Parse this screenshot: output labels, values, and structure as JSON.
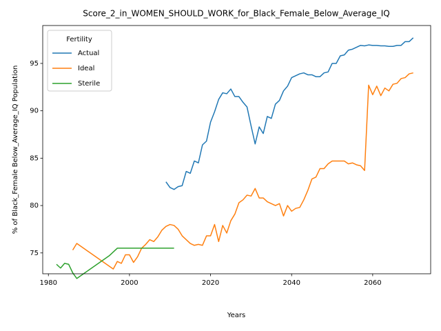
{
  "chart_data": {
    "type": "line",
    "title": "Score_2_in_WOMEN_SHOULD_WORK_for_Black_Female_Below_Average_IQ",
    "x_label": "Years",
    "y_label": "% of Black_Female Below_Average_IQ Population",
    "legend_title": "Fertility",
    "legend_loc": "upper left",
    "grid": false,
    "xlim": [
      1978.6,
      2074.3
    ],
    "ylim": [
      72.8,
      99.0
    ],
    "xticks": [
      1980,
      2000,
      2020,
      2040,
      2060
    ],
    "yticks": [
      75,
      80,
      85,
      90,
      95
    ],
    "x": [
      1982,
      1983,
      1984,
      1985,
      1986,
      1987,
      1988,
      1989,
      1990,
      1991,
      1992,
      1993,
      1994,
      1995,
      1996,
      1997,
      1998,
      1999,
      2000,
      2001,
      2002,
      2003,
      2004,
      2005,
      2006,
      2007,
      2008,
      2009,
      2010,
      2011,
      2012,
      2013,
      2014,
      2015,
      2016,
      2017,
      2018,
      2019,
      2020,
      2021,
      2022,
      2023,
      2024,
      2025,
      2026,
      2027,
      2028,
      2029,
      2030,
      2031,
      2032,
      2033,
      2034,
      2035,
      2036,
      2037,
      2038,
      2039,
      2040,
      2041,
      2042,
      2043,
      2044,
      2045,
      2046,
      2047,
      2048,
      2049,
      2050,
      2051,
      2052,
      2053,
      2054,
      2055,
      2056,
      2057,
      2058,
      2059,
      2060,
      2061,
      2062,
      2063,
      2064,
      2065,
      2066,
      2067,
      2068,
      2069,
      2070
    ],
    "series": [
      {
        "name": "Actual",
        "color": "#1f77b4",
        "values": [
          null,
          null,
          null,
          null,
          null,
          null,
          null,
          null,
          null,
          null,
          null,
          null,
          null,
          null,
          null,
          null,
          null,
          null,
          null,
          null,
          null,
          null,
          null,
          null,
          null,
          null,
          null,
          82.5,
          81.9,
          81.7,
          82.0,
          82.1,
          83.6,
          83.4,
          84.7,
          84.5,
          86.4,
          86.8,
          88.8,
          89.9,
          91.2,
          91.9,
          91.8,
          92.3,
          91.5,
          91.5,
          90.9,
          90.4,
          88.4,
          86.5,
          88.3,
          87.6,
          89.4,
          89.2,
          90.7,
          91.1,
          92.1,
          92.6,
          93.5,
          93.7,
          93.9,
          94.0,
          93.8,
          93.8,
          93.6,
          93.6,
          94.0,
          94.1,
          95.0,
          95.0,
          95.8,
          95.9,
          96.4,
          96.5,
          96.7,
          96.9,
          96.85,
          96.95,
          96.9,
          96.9,
          96.85,
          96.85,
          96.8,
          96.8,
          96.9,
          96.9,
          97.3,
          97.3,
          97.7
        ]
      },
      {
        "name": "Ideal",
        "color": "#ff7f0e",
        "values": [
          null,
          null,
          null,
          null,
          75.3,
          76.0,
          75.7,
          75.4,
          75.1,
          74.8,
          74.5,
          74.2,
          73.9,
          73.6,
          73.3,
          74.1,
          73.9,
          74.8,
          74.8,
          74.0,
          74.6,
          75.5,
          75.9,
          76.4,
          76.2,
          76.7,
          77.4,
          77.8,
          78.0,
          77.9,
          77.5,
          76.8,
          76.4,
          76.0,
          75.8,
          75.9,
          75.8,
          76.8,
          76.8,
          78.0,
          76.2,
          77.9,
          77.1,
          78.4,
          79.1,
          80.3,
          80.6,
          81.1,
          81.0,
          81.8,
          80.8,
          80.8,
          80.4,
          80.2,
          80.0,
          80.2,
          78.9,
          80.0,
          79.4,
          79.7,
          79.8,
          80.6,
          81.6,
          82.8,
          83.0,
          83.9,
          83.9,
          84.4,
          84.7,
          84.7,
          84.7,
          84.7,
          84.4,
          84.5,
          84.3,
          84.2,
          83.7,
          92.7,
          91.7,
          92.6,
          91.6,
          92.4,
          92.1,
          92.8,
          92.9,
          93.4,
          93.5,
          93.9,
          94.0
        ]
      },
      {
        "name": "Sterile",
        "color": "#2ca02c",
        "values": [
          73.8,
          73.4,
          73.9,
          73.8,
          72.9,
          72.3,
          72.6,
          72.9,
          73.2,
          73.5,
          73.8,
          74.1,
          74.4,
          74.7,
          75.1,
          75.5,
          75.5,
          75.5,
          75.5,
          75.5,
          75.5,
          75.5,
          75.5,
          75.5,
          75.5,
          75.5,
          75.5,
          75.5,
          75.5,
          75.5,
          null,
          null,
          null,
          null,
          null,
          null,
          null,
          null,
          null,
          null,
          null,
          null,
          null,
          null,
          null,
          null,
          null,
          null,
          null,
          null,
          null,
          null,
          null,
          null,
          null,
          null,
          null,
          null,
          null,
          null,
          null,
          null,
          null,
          null,
          null,
          null,
          null,
          null,
          null,
          null,
          null,
          null,
          null,
          null,
          null,
          null,
          null,
          null,
          null,
          null,
          null,
          null,
          null,
          null,
          null,
          null,
          null,
          null,
          null
        ]
      }
    ]
  }
}
